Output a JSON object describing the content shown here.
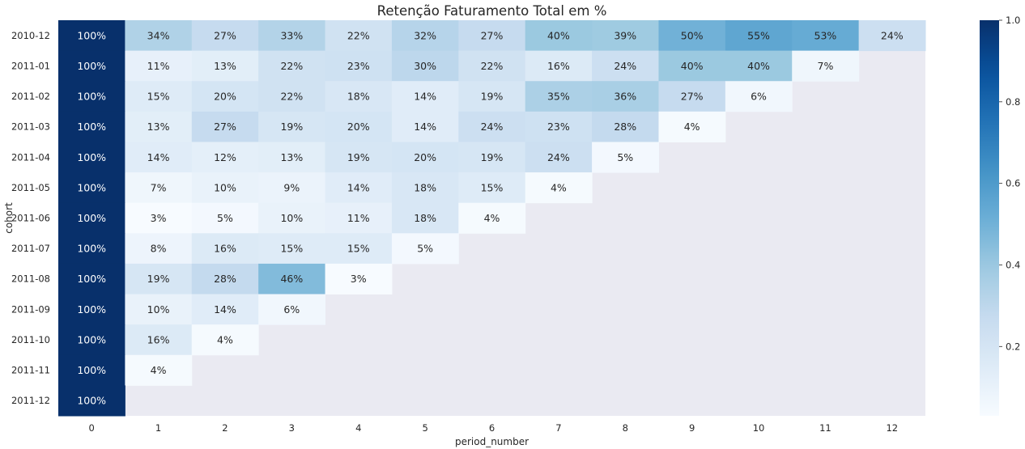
{
  "chart_data": {
    "type": "heatmap",
    "title": "Retenção Faturamento Total em %",
    "xlabel": "period_number",
    "ylabel": "cohort",
    "x_categories": [
      "0",
      "1",
      "2",
      "3",
      "4",
      "5",
      "6",
      "7",
      "8",
      "9",
      "10",
      "11",
      "12"
    ],
    "y_categories": [
      "2010-12",
      "2011-01",
      "2011-02",
      "2011-03",
      "2011-04",
      "2011-05",
      "2011-06",
      "2011-07",
      "2011-08",
      "2011-09",
      "2011-10",
      "2011-11",
      "2011-12"
    ],
    "values": [
      [
        1.0,
        0.34,
        0.27,
        0.33,
        0.22,
        0.32,
        0.27,
        0.4,
        0.39,
        0.5,
        0.55,
        0.53,
        0.24
      ],
      [
        1.0,
        0.11,
        0.13,
        0.22,
        0.23,
        0.3,
        0.22,
        0.16,
        0.24,
        0.4,
        0.4,
        0.07,
        null
      ],
      [
        1.0,
        0.15,
        0.2,
        0.22,
        0.18,
        0.14,
        0.19,
        0.35,
        0.36,
        0.27,
        0.06,
        null,
        null
      ],
      [
        1.0,
        0.13,
        0.27,
        0.19,
        0.2,
        0.14,
        0.24,
        0.23,
        0.28,
        0.04,
        null,
        null,
        null
      ],
      [
        1.0,
        0.14,
        0.12,
        0.13,
        0.19,
        0.2,
        0.19,
        0.24,
        0.05,
        null,
        null,
        null,
        null
      ],
      [
        1.0,
        0.07,
        0.1,
        0.09,
        0.14,
        0.18,
        0.15,
        0.04,
        null,
        null,
        null,
        null,
        null
      ],
      [
        1.0,
        0.03,
        0.05,
        0.1,
        0.11,
        0.18,
        0.04,
        null,
        null,
        null,
        null,
        null,
        null
      ],
      [
        1.0,
        0.08,
        0.16,
        0.15,
        0.15,
        0.05,
        null,
        null,
        null,
        null,
        null,
        null,
        null
      ],
      [
        1.0,
        0.19,
        0.28,
        0.46,
        0.03,
        null,
        null,
        null,
        null,
        null,
        null,
        null,
        null
      ],
      [
        1.0,
        0.1,
        0.14,
        0.06,
        null,
        null,
        null,
        null,
        null,
        null,
        null,
        null,
        null
      ],
      [
        1.0,
        0.16,
        0.04,
        null,
        null,
        null,
        null,
        null,
        null,
        null,
        null,
        null,
        null
      ],
      [
        1.0,
        0.04,
        null,
        null,
        null,
        null,
        null,
        null,
        null,
        null,
        null,
        null,
        null
      ],
      [
        1.0,
        null,
        null,
        null,
        null,
        null,
        null,
        null,
        null,
        null,
        null,
        null,
        null
      ]
    ],
    "labels": [
      [
        "100%",
        "34%",
        "27%",
        "33%",
        "22%",
        "32%",
        "27%",
        "40%",
        "39%",
        "50%",
        "55%",
        "53%",
        "24%"
      ],
      [
        "100%",
        "11%",
        "13%",
        "22%",
        "23%",
        "30%",
        "22%",
        "16%",
        "24%",
        "40%",
        "40%",
        "7%",
        ""
      ],
      [
        "100%",
        "15%",
        "20%",
        "22%",
        "18%",
        "14%",
        "19%",
        "35%",
        "36%",
        "27%",
        "6%",
        "",
        ""
      ],
      [
        "100%",
        "13%",
        "27%",
        "19%",
        "20%",
        "14%",
        "24%",
        "23%",
        "28%",
        "4%",
        "",
        "",
        ""
      ],
      [
        "100%",
        "14%",
        "12%",
        "13%",
        "19%",
        "20%",
        "19%",
        "24%",
        "5%",
        "",
        "",
        "",
        ""
      ],
      [
        "100%",
        "7%",
        "10%",
        "9%",
        "14%",
        "18%",
        "15%",
        "4%",
        "",
        "",
        "",
        "",
        ""
      ],
      [
        "100%",
        "3%",
        "5%",
        "10%",
        "11%",
        "18%",
        "4%",
        "",
        "",
        "",
        "",
        "",
        ""
      ],
      [
        "100%",
        "8%",
        "16%",
        "15%",
        "15%",
        "5%",
        "",
        "",
        "",
        "",
        "",
        "",
        ""
      ],
      [
        "100%",
        "19%",
        "28%",
        "46%",
        "3%",
        "",
        "",
        "",
        "",
        "",
        "",
        "",
        ""
      ],
      [
        "100%",
        "10%",
        "14%",
        "6%",
        "",
        "",
        "",
        "",
        "",
        "",
        "",
        "",
        ""
      ],
      [
        "100%",
        "16%",
        "4%",
        "",
        "",
        "",
        "",
        "",
        "",
        "",
        "",
        "",
        ""
      ],
      [
        "100%",
        "4%",
        "",
        "",
        "",
        "",
        "",
        "",
        "",
        "",
        "",
        "",
        ""
      ],
      [
        "100%",
        "",
        "",
        "",
        "",
        "",
        "",
        "",
        "",
        "",
        "",
        "",
        ""
      ]
    ],
    "vmin": 0.03,
    "vmax": 1.0,
    "colormap": "Blues",
    "colorbar_ticks": [
      "0.2",
      "0.4",
      "0.6",
      "0.8",
      "1.0"
    ],
    "colorbar_tick_values": [
      0.2,
      0.4,
      0.6,
      0.8,
      1.0
    ],
    "missing_color": "#eaeaf2",
    "grid": false
  }
}
